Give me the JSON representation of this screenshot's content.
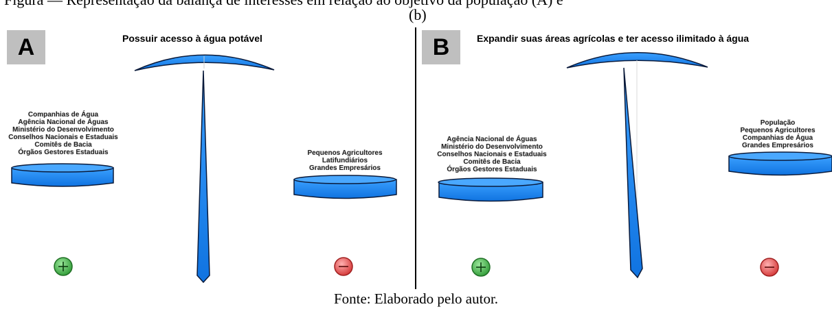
{
  "caption_top": "Figura — Representação da balança de interesses em relação ao objetivo da população (A) e",
  "sub_label": "(b)",
  "panels": [
    {
      "letter": "A",
      "title": "Possuir acesso à água potável",
      "left_groups": [
        "Companhias de Água",
        "Agência Nacional de Águas",
        "Ministério do Desenvolvimento",
        "Conselhos Nacionais e Estaduais",
        "Comitês de Bacia",
        "Órgãos Gestores Estaduais"
      ],
      "right_groups": [
        "Pequenos Agricultores",
        "Latifundiários",
        "Grandes Empresários"
      ],
      "plus_icon": "plus-circle-icon",
      "minus_icon": "minus-circle-icon"
    },
    {
      "letter": "B",
      "title": "Expandir suas áreas agrícolas e ter acesso ilimitado à água",
      "left_groups": [
        "Agência Nacional de Águas",
        "Ministério do Desenvolvimento",
        "Conselhos Nacionais e Estaduais",
        "Comitês de Bacia",
        "Órgãos Gestores Estaduais"
      ],
      "right_groups": [
        "População",
        "Pequenos Agricultores",
        "Companhias de Água",
        "Grandes Empresários"
      ],
      "plus_icon": "plus-circle-icon",
      "minus_icon": "minus-circle-icon"
    }
  ],
  "colors": {
    "pan_blue": "#1e90ff",
    "pan_stroke": "#0a1a3a",
    "plus_green": "#3cb043",
    "minus_red": "#e84a4a",
    "label_bg": "#bfbfbf"
  },
  "source": "Fonte: Elaborado pelo autor."
}
